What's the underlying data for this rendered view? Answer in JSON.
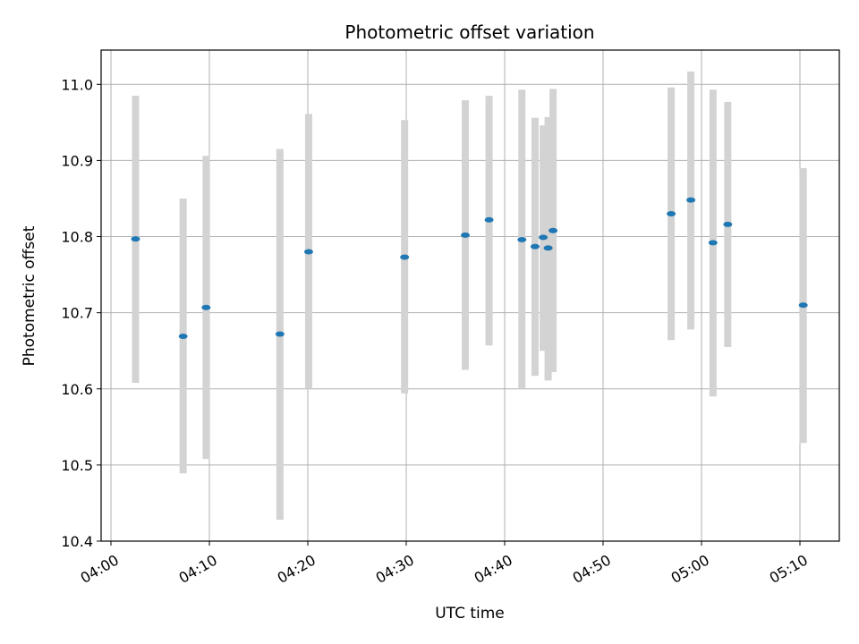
{
  "chart_data": {
    "type": "scatter",
    "title": "Photometric offset variation",
    "xlabel": "UTC time",
    "ylabel": "Photometric offset",
    "xlim": [
      "03:59:00",
      "05:14:00"
    ],
    "ylim": [
      10.4,
      11.045
    ],
    "x_ticks": [
      "04:00",
      "04:10",
      "04:20",
      "04:30",
      "04:40",
      "04:50",
      "05:00",
      "05:10"
    ],
    "y_ticks": [
      10.4,
      10.5,
      10.6,
      10.7,
      10.8,
      10.9,
      11.0
    ],
    "grid": true,
    "point_color": "#1f77b4",
    "errorbar_color": "#d3d3d3",
    "points": [
      {
        "x": "04:02:30",
        "y": 10.797,
        "ylow": 10.608,
        "yhigh": 10.985
      },
      {
        "x": "04:07:20",
        "y": 10.669,
        "ylow": 10.489,
        "yhigh": 10.85
      },
      {
        "x": "04:09:40",
        "y": 10.707,
        "ylow": 10.508,
        "yhigh": 10.906
      },
      {
        "x": "04:17:10",
        "y": 10.672,
        "ylow": 10.428,
        "yhigh": 10.915
      },
      {
        "x": "04:20:05",
        "y": 10.78,
        "ylow": 10.6,
        "yhigh": 10.961
      },
      {
        "x": "04:29:50",
        "y": 10.773,
        "ylow": 10.594,
        "yhigh": 10.953
      },
      {
        "x": "04:36:00",
        "y": 10.802,
        "ylow": 10.625,
        "yhigh": 10.979
      },
      {
        "x": "04:38:25",
        "y": 10.822,
        "ylow": 10.657,
        "yhigh": 10.985
      },
      {
        "x": "04:41:45",
        "y": 10.796,
        "ylow": 10.601,
        "yhigh": 10.993
      },
      {
        "x": "04:43:05",
        "y": 10.787,
        "ylow": 10.617,
        "yhigh": 10.956
      },
      {
        "x": "04:43:55",
        "y": 10.799,
        "ylow": 10.65,
        "yhigh": 10.946
      },
      {
        "x": "04:44:25",
        "y": 10.785,
        "ylow": 10.611,
        "yhigh": 10.957
      },
      {
        "x": "04:44:55",
        "y": 10.808,
        "ylow": 10.622,
        "yhigh": 10.994
      },
      {
        "x": "04:56:55",
        "y": 10.83,
        "ylow": 10.664,
        "yhigh": 10.996
      },
      {
        "x": "04:58:55",
        "y": 10.848,
        "ylow": 10.678,
        "yhigh": 11.017
      },
      {
        "x": "05:01:10",
        "y": 10.792,
        "ylow": 10.59,
        "yhigh": 10.993
      },
      {
        "x": "05:02:40",
        "y": 10.816,
        "ylow": 10.655,
        "yhigh": 10.977
      },
      {
        "x": "05:10:20",
        "y": 10.71,
        "ylow": 10.529,
        "yhigh": 10.89
      }
    ]
  }
}
